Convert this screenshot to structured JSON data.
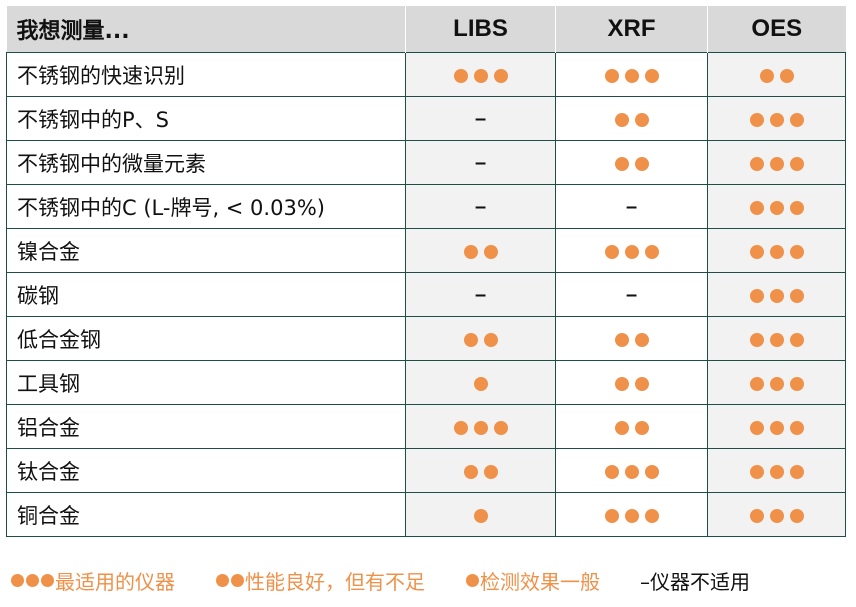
{
  "header": {
    "label": "我想测量...",
    "columns": [
      "LIBS",
      "XRF",
      "OES"
    ]
  },
  "accent_color": "#f0914a",
  "rows": [
    {
      "label": "不锈钢的快速识别",
      "ratings": [
        3,
        3,
        2
      ]
    },
    {
      "label": "不锈钢中的P、S",
      "ratings": [
        0,
        2,
        3
      ]
    },
    {
      "label": "不锈钢中的微量元素",
      "ratings": [
        0,
        2,
        3
      ]
    },
    {
      "label": "不锈钢中的C (L-牌号, < 0.03%)",
      "ratings": [
        0,
        0,
        3
      ]
    },
    {
      "label": "镍合金",
      "ratings": [
        2,
        3,
        3
      ]
    },
    {
      "label": "碳钢",
      "ratings": [
        0,
        0,
        3
      ]
    },
    {
      "label": "低合金钢",
      "ratings": [
        2,
        2,
        3
      ]
    },
    {
      "label": "工具钢",
      "ratings": [
        1,
        2,
        3
      ]
    },
    {
      "label": "铝合金",
      "ratings": [
        3,
        2,
        3
      ]
    },
    {
      "label": "钛合金",
      "ratings": [
        2,
        3,
        3
      ]
    },
    {
      "label": "铜合金",
      "ratings": [
        1,
        3,
        3
      ]
    }
  ],
  "dash": "–",
  "legend": [
    {
      "dots": 3,
      "text": "最适用的仪器"
    },
    {
      "dots": 2,
      "text": "性能良好，但有不足"
    },
    {
      "dots": 1,
      "text": "检测效果一般"
    },
    {
      "dots": 0,
      "text": "–仪器不适用"
    }
  ]
}
